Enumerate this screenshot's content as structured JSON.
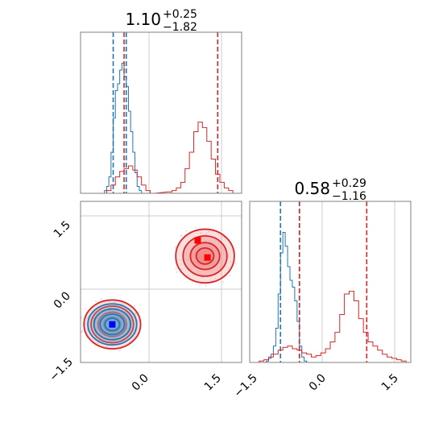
{
  "chart_data": {
    "type": "corner",
    "colors": {
      "blue": "#1f77b4",
      "red": "#d62728",
      "grid": "#cccccc",
      "frame": "#808080"
    },
    "marginals": [
      {
        "panel": "top-left",
        "title": {
          "value": "1.10",
          "plus": "+0.25",
          "minus": "−1.82"
        },
        "xlim": [
          -1.8,
          1.9
        ],
        "blue": {
          "bins": [
            -1.3,
            -1.25,
            -1.2,
            -1.15,
            -1.1,
            -1.05,
            -1.0,
            -0.95,
            -0.9,
            -0.85,
            -0.8,
            -0.75,
            -0.7,
            -0.65,
            -0.6,
            -0.55,
            -0.5,
            -0.45,
            -0.4,
            -0.35,
            -0.3,
            -0.25,
            -0.2
          ],
          "values": [
            0,
            0.02,
            0.05,
            0.12,
            0.3,
            0.55,
            0.75,
            0.8,
            0.9,
            0.95,
            0.85,
            0.78,
            0.6,
            0.45,
            0.3,
            0.15,
            0.05,
            0.02,
            0,
            0,
            0,
            0,
            0
          ],
          "quantiles": [
            -1.05,
            -0.75
          ]
        },
        "red": {
          "bins": [
            -1.3,
            -1.2,
            -1.1,
            -1.0,
            -0.9,
            -0.8,
            -0.7,
            -0.6,
            -0.5,
            -0.4,
            -0.3,
            -0.2,
            0.2,
            0.3,
            0.4,
            0.5,
            0.6,
            0.7,
            0.8,
            0.9,
            1.0,
            1.1,
            1.2,
            1.3,
            1.4,
            1.5,
            1.6,
            1.7
          ],
          "values": [
            0,
            0.02,
            0.06,
            0.12,
            0.16,
            0.18,
            0.2,
            0.17,
            0.12,
            0.06,
            0.02,
            0,
            0.01,
            0.02,
            0.04,
            0.08,
            0.18,
            0.3,
            0.45,
            0.52,
            0.48,
            0.38,
            0.25,
            0.14,
            0.08,
            0.04,
            0.02,
            0
          ],
          "quantiles": [
            -0.8,
            1.35
          ]
        },
        "xticks": [
          -1.5,
          0.0,
          1.5
        ]
      },
      {
        "panel": "bottom-right",
        "title": {
          "value": "0.58",
          "plus": "+0.29",
          "minus": "−1.16"
        },
        "xlim": [
          -1.6,
          1.8
        ],
        "blue": {
          "bins": [
            -1.3,
            -1.25,
            -1.2,
            -1.15,
            -1.1,
            -1.05,
            -1.0,
            -0.95,
            -0.9,
            -0.85,
            -0.8,
            -0.75,
            -0.7,
            -0.65,
            -0.6,
            -0.55,
            -0.5,
            -0.45,
            -0.4
          ],
          "values": [
            0,
            0.01,
            0.03,
            0.06,
            0.12,
            0.25,
            0.5,
            0.8,
            0.95,
            0.85,
            0.7,
            0.6,
            0.55,
            0.45,
            0.3,
            0.12,
            0.04,
            0.01,
            0
          ],
          "quantiles": [
            -0.95,
            -0.55
          ]
        },
        "red": {
          "bins": [
            -1.5,
            -1.4,
            -1.3,
            -1.2,
            -1.1,
            -1.0,
            -0.9,
            -0.8,
            -0.7,
            -0.6,
            -0.5,
            -0.4,
            -0.3,
            -0.2,
            -0.1,
            0.0,
            0.1,
            0.2,
            0.3,
            0.4,
            0.5,
            0.6,
            0.7,
            0.8,
            0.9,
            1.0,
            1.1,
            1.2,
            1.3,
            1.4,
            1.5,
            1.6,
            1.7
          ],
          "values": [
            0,
            0.01,
            0.02,
            0.04,
            0.06,
            0.09,
            0.11,
            0.12,
            0.1,
            0.09,
            0.07,
            0.06,
            0.04,
            0.05,
            0.07,
            0.1,
            0.15,
            0.22,
            0.35,
            0.5,
            0.52,
            0.45,
            0.32,
            0.22,
            0.15,
            0.12,
            0.09,
            0.06,
            0.04,
            0.03,
            0.02,
            0.01,
            0
          ],
          "quantiles": [
            -0.55,
            0.87
          ]
        },
        "xticks": [
          -1.5,
          0.0,
          1.5
        ]
      }
    ],
    "joint": {
      "panel": "bottom-left",
      "xlim": [
        -1.4,
        1.9
      ],
      "ylim": [
        -1.5,
        1.8
      ],
      "xticks": [
        -1.5,
        0.0,
        1.5
      ],
      "yticks": [
        -1.5,
        0.0,
        1.5
      ],
      "blue_cluster": {
        "center": [
          -0.75,
          -0.72
        ],
        "rx": 0.5,
        "ry": 0.42
      },
      "red_clusters": [
        {
          "center": [
            -0.75,
            -0.72
          ],
          "rx": 0.58,
          "ry": 0.5
        },
        {
          "center": [
            1.15,
            0.68
          ],
          "rx": 0.6,
          "ry": 0.55
        }
      ],
      "red_markers": [
        [
          1.0,
          1.0
        ],
        [
          1.2,
          0.65
        ]
      ],
      "blue_marker": [
        -0.75,
        -0.72
      ]
    }
  }
}
